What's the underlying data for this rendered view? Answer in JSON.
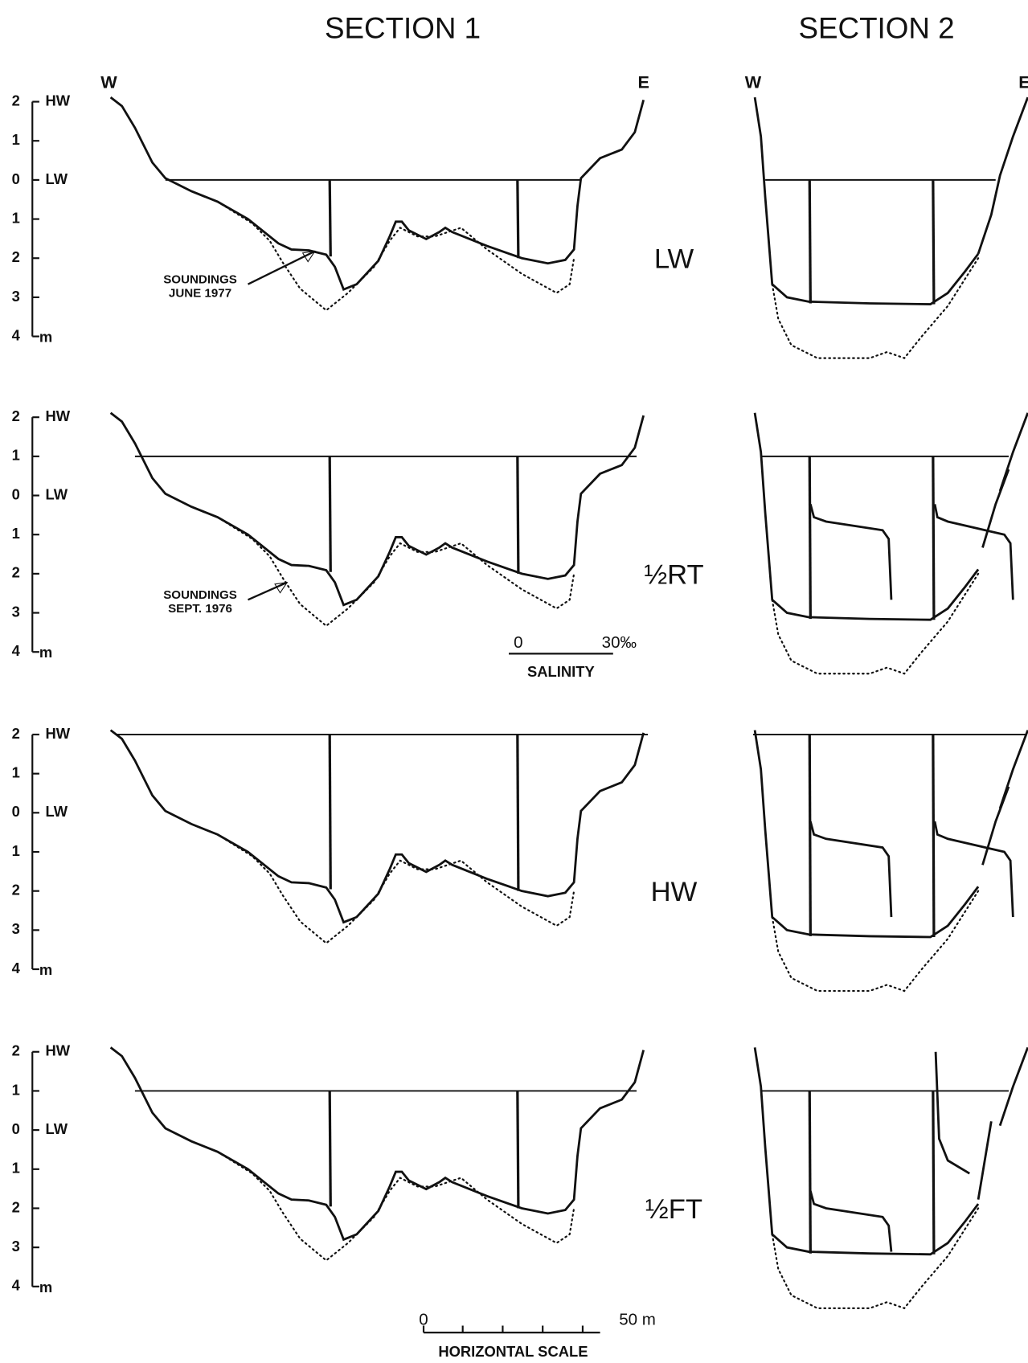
{
  "header": {
    "sections": [
      "SECTION 1",
      "SECTION 2"
    ]
  },
  "banks": {
    "west": "W",
    "east": "E"
  },
  "axis": {
    "tick_labels": [
      "2",
      "1",
      "0",
      "1",
      "2",
      "3",
      "4"
    ],
    "high_water": "HW",
    "low_water": "LW",
    "unit": "m"
  },
  "rows": [
    {
      "tide": "LW",
      "annotation": [
        "SOUNDINGS",
        "JUNE 1977"
      ]
    },
    {
      "tide": "½RT",
      "annotation": [
        "SOUNDINGS",
        "SEPT. 1976"
      ]
    },
    {
      "tide": "HW"
    },
    {
      "tide": "½FT"
    }
  ],
  "salinity_scale": {
    "min": "0",
    "max": "30‰",
    "label": "SALINITY"
  },
  "horizontal_scale": {
    "min": "0",
    "max": "50 m",
    "label": "HORIZONTAL SCALE"
  }
}
